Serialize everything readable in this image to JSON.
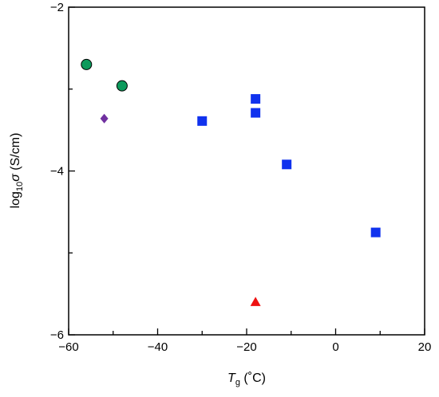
{
  "chart_data": {
    "type": "scatter",
    "xlabel": {
      "symbol": "T",
      "subscript": "g",
      "unit": "(˚C)"
    },
    "ylabel": {
      "prefix": "log",
      "subscript": "10",
      "symbol": "σ",
      "unit": "(S/cm)"
    },
    "xlim": [
      -60,
      20
    ],
    "ylim": [
      -6,
      -2
    ],
    "x_ticks": [
      -60,
      -40,
      -20,
      0,
      20
    ],
    "y_ticks": [
      -2,
      -4,
      -6
    ],
    "x_tick_labels": [
      "−60",
      "−40",
      "−20",
      "0",
      "20"
    ],
    "y_tick_labels": [
      "−2",
      "−4",
      "−6"
    ],
    "grid": false,
    "series": [
      {
        "marker": "circle",
        "color": "#0d9a5c",
        "points": [
          [
            -56,
            -2.7
          ],
          [
            -48,
            -2.96
          ]
        ]
      },
      {
        "marker": "diamond",
        "color": "#7030a0",
        "points": [
          [
            -52,
            -3.36
          ]
        ]
      },
      {
        "marker": "square",
        "color": "#1032ee",
        "points": [
          [
            -30,
            -3.39
          ],
          [
            -18,
            -3.12
          ],
          [
            -18,
            -3.29
          ],
          [
            -11,
            -3.92
          ],
          [
            9,
            -4.75
          ]
        ]
      },
      {
        "marker": "triangle",
        "color": "#ee1111",
        "points": [
          [
            -18,
            -5.6
          ]
        ]
      }
    ]
  }
}
